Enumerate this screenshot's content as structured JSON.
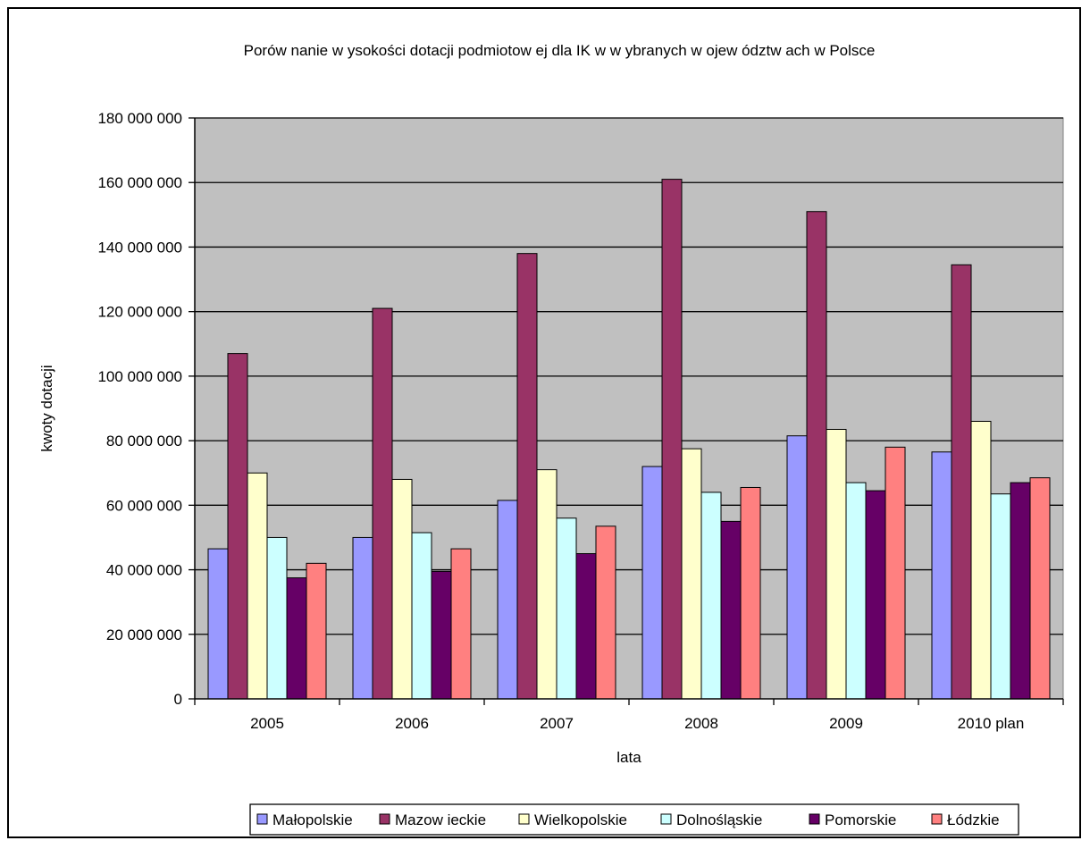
{
  "chart_data": {
    "type": "bar",
    "title": "Porów nanie w ysokości dotacji podmiotow ej dla IK w  w ybranych w ojew ództw ach w  Polsce",
    "xlabel": "lata",
    "ylabel": "kwoty dotacji",
    "categories": [
      "2005",
      "2006",
      "2007",
      "2008",
      "2009",
      "2010 plan"
    ],
    "ylim": [
      0,
      180000000
    ],
    "ytick_values": [
      0,
      20000000,
      40000000,
      60000000,
      80000000,
      100000000,
      120000000,
      140000000,
      160000000,
      180000000
    ],
    "ytick_labels": [
      "0",
      "20 000 000",
      "40 000 000",
      "60 000 000",
      "80 000 000",
      "100 000 000",
      "120 000 000",
      "140 000 000",
      "160 000 000",
      "180 000 000"
    ],
    "grid": true,
    "legend_position": "bottom",
    "plot_background": "#c0c0c0",
    "series": [
      {
        "name": "Małopolskie",
        "color": "#9999ff",
        "values": [
          46500000,
          50000000,
          61500000,
          72000000,
          81500000,
          76500000
        ]
      },
      {
        "name": "Mazow ieckie",
        "color": "#993366",
        "values": [
          107000000,
          121000000,
          138000000,
          161000000,
          151000000,
          134500000
        ]
      },
      {
        "name": "Wielkopolskie",
        "color": "#ffffcc",
        "values": [
          70000000,
          68000000,
          71000000,
          77500000,
          83500000,
          86000000
        ]
      },
      {
        "name": "Dolnośląskie",
        "color": "#ccffff",
        "values": [
          50000000,
          51500000,
          56000000,
          64000000,
          67000000,
          63500000
        ]
      },
      {
        "name": "Pomorskie",
        "color": "#660066",
        "values": [
          37500000,
          39500000,
          45000000,
          55000000,
          64500000,
          67000000
        ]
      },
      {
        "name": "Łódzkie",
        "color": "#ff8080",
        "values": [
          42000000,
          46500000,
          53500000,
          65500000,
          78000000,
          68500000
        ]
      }
    ]
  }
}
